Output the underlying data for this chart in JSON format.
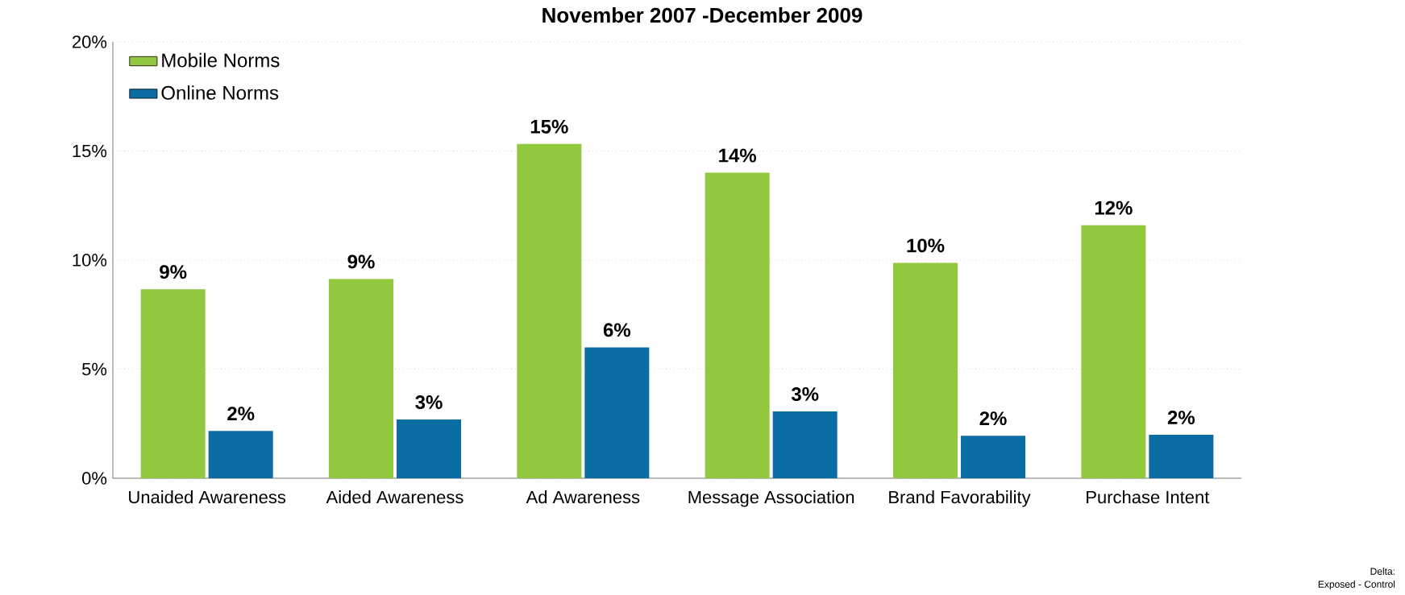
{
  "chart_data": {
    "type": "bar",
    "title": "November 2007 -December 2009",
    "categories": [
      "Unaided Awareness",
      "Aided Awareness",
      "Ad Awareness",
      "Message Association",
      "Brand Favorability",
      "Purchase Intent"
    ],
    "series": [
      {
        "name": "Mobile Norms",
        "color": "#92c83e",
        "values": [
          8.66,
          9.13,
          15.32,
          14.0,
          9.87,
          11.6
        ],
        "value_labels": [
          "9%",
          "9%",
          "15%",
          "14%",
          "10%",
          "12%"
        ]
      },
      {
        "name": "Online Norms",
        "color": "#0a6ea5",
        "values": [
          2.17,
          2.69,
          6.0,
          3.06,
          1.95,
          1.99
        ],
        "value_labels": [
          "2%",
          "3%",
          "6%",
          "3%",
          "2%",
          "2%"
        ]
      }
    ],
    "ylim": [
      0,
      20
    ],
    "yticks": [
      {
        "value": 0,
        "label": "0%"
      },
      {
        "value": 5,
        "label": "5%"
      },
      {
        "value": 10,
        "label": "10%"
      },
      {
        "value": 15,
        "label": "15%"
      },
      {
        "value": 20,
        "label": "20%"
      }
    ],
    "grid": "y",
    "legend": "top left",
    "annotations": [
      "Delta:",
      "Exposed - Control"
    ]
  }
}
